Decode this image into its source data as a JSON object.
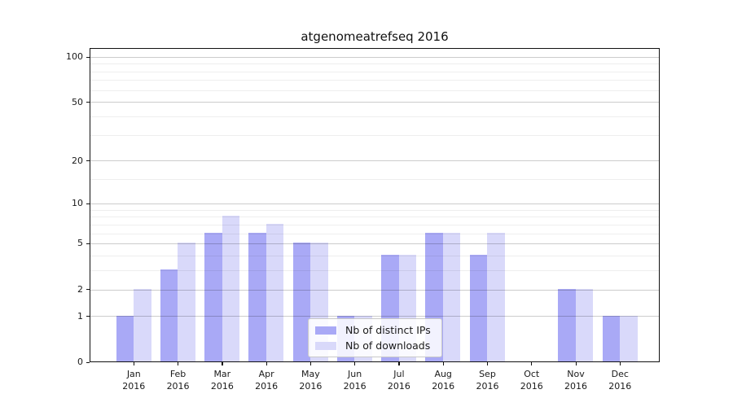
{
  "title": "atgenomeatrefseq 2016",
  "chart_data": {
    "type": "bar",
    "title": "atgenomeatrefseq 2016",
    "categories": [
      "Jan 2016",
      "Feb 2016",
      "Mar 2016",
      "Apr 2016",
      "May 2016",
      "Jun 2016",
      "Jul 2016",
      "Aug 2016",
      "Sep 2016",
      "Oct 2016",
      "Nov 2016",
      "Dec 2016"
    ],
    "x_tick_line1": [
      "Jan",
      "Feb",
      "Mar",
      "Apr",
      "May",
      "Jun",
      "Jul",
      "Aug",
      "Sep",
      "Oct",
      "Nov",
      "Dec"
    ],
    "x_tick_line2": "2016",
    "series": [
      {
        "name": "Nb of distinct IPs",
        "color": "#a9a9f6",
        "values": [
          1,
          3,
          6,
          6,
          5,
          1,
          4,
          6,
          4,
          0,
          2,
          1
        ]
      },
      {
        "name": "Nb of downloads",
        "color": "#d9d9fa",
        "values": [
          2,
          5,
          8,
          7,
          5,
          1,
          4,
          6,
          6,
          0,
          2,
          1
        ]
      }
    ],
    "ylabel": "",
    "xlabel": "",
    "yscale": "log1p",
    "y_major_ticks": [
      0,
      1,
      2,
      5,
      10,
      20,
      50,
      100
    ],
    "y_major_tick_labels": [
      "0",
      "1",
      "2",
      "5",
      "10",
      "20",
      "50",
      "100"
    ],
    "y_minor_ticks": [
      3,
      4,
      6,
      7,
      8,
      9,
      15,
      30,
      40,
      60,
      70,
      80,
      90
    ],
    "ylim_top": 115,
    "grid": true,
    "legend_position": "lower-center",
    "colors": {
      "spine": "#111111",
      "grid_major": "rgba(0,0,0,0.20)",
      "grid_minor": "rgba(0,0,0,0.065)"
    }
  },
  "legend": {
    "items": [
      {
        "label": "Nb of distinct IPs"
      },
      {
        "label": "Nb of downloads"
      }
    ]
  }
}
